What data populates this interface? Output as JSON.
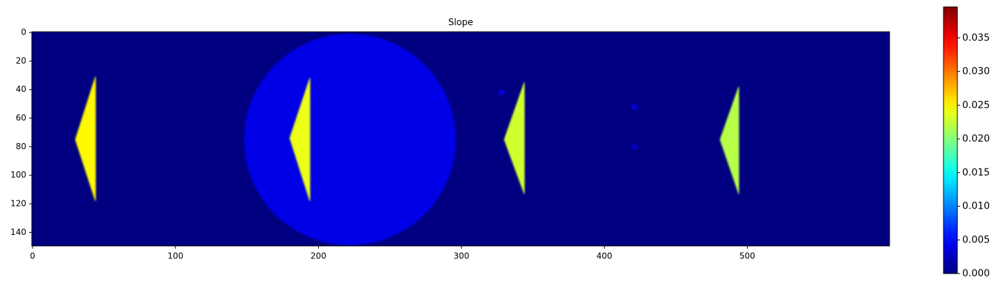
{
  "chart_data": {
    "type": "heatmap",
    "title": "Slope",
    "colormap": "jet",
    "xlim": [
      -0.5,
      599.5
    ],
    "ylim": [
      -0.5,
      149.5
    ],
    "y_inverted": true,
    "xticks": [
      0,
      100,
      200,
      300,
      400,
      500
    ],
    "yticks": [
      0,
      20,
      40,
      60,
      80,
      100,
      120,
      140
    ],
    "background": 0,
    "regions": [
      {
        "shape": "circle",
        "cx": 222,
        "cy": 75,
        "r": 74,
        "value": 0.004
      },
      {
        "shape": "polygon",
        "points": [
          [
            44,
            31
          ],
          [
            30,
            75
          ],
          [
            44,
            118
          ]
        ],
        "value": 0.025
      },
      {
        "shape": "polygon",
        "points": [
          [
            194,
            32
          ],
          [
            180,
            74
          ],
          [
            194,
            118
          ]
        ],
        "value": 0.024
      },
      {
        "shape": "polygon",
        "points": [
          [
            344,
            35
          ],
          [
            330,
            75
          ],
          [
            344,
            113
          ]
        ],
        "value": 0.023
      },
      {
        "shape": "polygon",
        "points": [
          [
            494,
            38
          ],
          [
            481,
            75
          ],
          [
            494,
            113
          ]
        ],
        "value": 0.022
      },
      {
        "shape": "circle",
        "cx": 328,
        "cy": 42,
        "r": 2,
        "value": 0.004
      },
      {
        "shape": "circle",
        "cx": 421,
        "cy": 52,
        "r": 2,
        "value": 0.004
      },
      {
        "shape": "circle",
        "cx": 421,
        "cy": 80,
        "r": 2,
        "value": 0.003
      }
    ],
    "colorbar": {
      "lim": [
        0,
        0.0396
      ],
      "ticks": [
        {
          "value": 0,
          "label": "0.000"
        },
        {
          "value": 0.005,
          "label": "0.005"
        },
        {
          "value": 0.01,
          "label": "0.010"
        },
        {
          "value": 0.015,
          "label": "0.015"
        },
        {
          "value": 0.02,
          "label": "0.020"
        },
        {
          "value": 0.025,
          "label": "0.025"
        },
        {
          "value": 0.03,
          "label": "0.030"
        },
        {
          "value": 0.035,
          "label": "0.035"
        }
      ]
    }
  }
}
